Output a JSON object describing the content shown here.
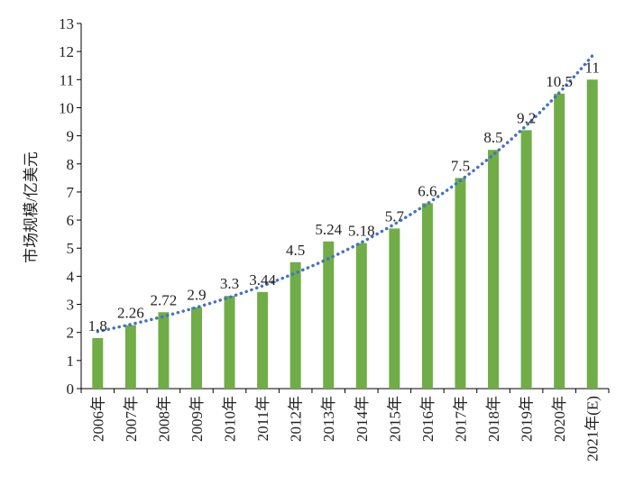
{
  "chart_data": {
    "type": "bar",
    "title": "",
    "xlabel": "",
    "ylabel": "市场规模/亿美元",
    "ylim": [
      0,
      13
    ],
    "yticks": [
      0,
      1,
      2,
      3,
      4,
      5,
      6,
      7,
      8,
      9,
      10,
      11,
      12,
      13
    ],
    "grid": false,
    "legend": "none",
    "categories": [
      "2006年",
      "2007年",
      "2008年",
      "2009年",
      "2010年",
      "2011年",
      "2012年",
      "2013年",
      "2014年",
      "2015年",
      "2016年",
      "2017年",
      "2018年",
      "2019年",
      "2020年",
      "2021年(E)"
    ],
    "values": [
      1.8,
      2.26,
      2.72,
      2.9,
      3.3,
      3.44,
      4.5,
      5.24,
      5.18,
      5.7,
      6.6,
      7.5,
      8.5,
      9.2,
      10.5,
      11
    ],
    "data_labels": [
      "1.8",
      "2.26",
      "2.72",
      "2.9",
      "3.3",
      "3.44",
      "4.5",
      "5.24",
      "5.18",
      "5.7",
      "6.6",
      "7.5",
      "8.5",
      "9.2",
      "10.5",
      "11"
    ],
    "trendline": {
      "type": "exponential",
      "style": "dotted"
    },
    "colors": {
      "bar": "#70AD47",
      "trendline": "#4472C4",
      "axis": "#000000"
    }
  }
}
